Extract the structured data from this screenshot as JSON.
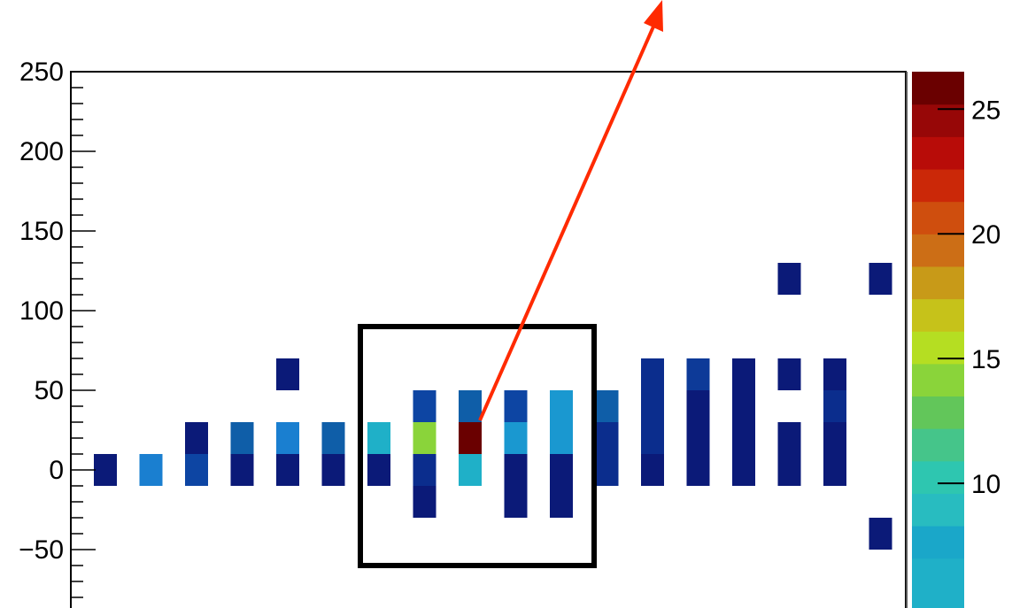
{
  "chart_data": {
    "type": "heatmap",
    "title": "",
    "xlabel": "",
    "ylabel": "",
    "ylim": [
      -85,
      250
    ],
    "y_ticks": [
      {
        "value": 250,
        "label": "250"
      },
      {
        "value": 200,
        "label": "200"
      },
      {
        "value": 150,
        "label": "150"
      },
      {
        "value": 100,
        "label": "100"
      },
      {
        "value": 50,
        "label": "50"
      },
      {
        "value": 0,
        "label": "0"
      },
      {
        "value": -50,
        "label": "−50"
      }
    ],
    "y_minor_step": 10,
    "y_bin_height": 20,
    "x_columns": 18,
    "grid": false,
    "colorbar": {
      "range": [
        5,
        26.5
      ],
      "ticks": [
        {
          "value": 25,
          "label": "25"
        },
        {
          "value": 20,
          "label": "20"
        },
        {
          "value": 15,
          "label": "15"
        },
        {
          "value": 10,
          "label": "10"
        }
      ],
      "levels": [
        {
          "from": 5.0,
          "to": 7.0,
          "color": "#1fb0c8"
        },
        {
          "from": 7.0,
          "to": 8.3,
          "color": "#1aa7c9"
        },
        {
          "from": 8.3,
          "to": 9.6,
          "color": "#28bcc0"
        },
        {
          "from": 9.6,
          "to": 10.9,
          "color": "#2ec6b0"
        },
        {
          "from": 10.9,
          "to": 12.2,
          "color": "#45c58a"
        },
        {
          "from": 12.2,
          "to": 13.5,
          "color": "#62c65a"
        },
        {
          "from": 13.5,
          "to": 14.8,
          "color": "#8ad43a"
        },
        {
          "from": 14.8,
          "to": 16.1,
          "color": "#b5de22"
        },
        {
          "from": 16.1,
          "to": 17.4,
          "color": "#c6c21a"
        },
        {
          "from": 17.4,
          "to": 18.7,
          "color": "#c89a18"
        },
        {
          "from": 18.7,
          "to": 20.0,
          "color": "#cc6e16"
        },
        {
          "from": 20.0,
          "to": 21.3,
          "color": "#cf4e0e"
        },
        {
          "from": 21.3,
          "to": 22.6,
          "color": "#cb2808"
        },
        {
          "from": 22.6,
          "to": 23.9,
          "color": "#b80c08"
        },
        {
          "from": 23.9,
          "to": 25.2,
          "color": "#970707"
        },
        {
          "from": 25.2,
          "to": 26.5,
          "color": "#6a0000"
        }
      ]
    },
    "cells": [
      {
        "col": 1,
        "y": 0,
        "value": 1,
        "color": "#0b1a78"
      },
      {
        "col": 2,
        "y": 0,
        "value": 4,
        "color": "#1a7fd0"
      },
      {
        "col": 3,
        "y": 20,
        "value": 1,
        "color": "#0b1a78"
      },
      {
        "col": 3,
        "y": 0,
        "value": 2,
        "color": "#0d45a3"
      },
      {
        "col": 4,
        "y": 20,
        "value": 3,
        "color": "#0f5ea8"
      },
      {
        "col": 4,
        "y": 0,
        "value": 1,
        "color": "#0b1a78"
      },
      {
        "col": 5,
        "y": 60,
        "value": 1,
        "color": "#0b1a78"
      },
      {
        "col": 5,
        "y": 20,
        "value": 4,
        "color": "#1a7fd0"
      },
      {
        "col": 5,
        "y": 0,
        "value": 1,
        "color": "#0b1a78"
      },
      {
        "col": 6,
        "y": 20,
        "value": 3,
        "color": "#0f5ea8"
      },
      {
        "col": 6,
        "y": 0,
        "value": 1,
        "color": "#0b1a78"
      },
      {
        "col": 7,
        "y": 20,
        "value": 7,
        "color": "#1fb0c8"
      },
      {
        "col": 7,
        "y": 0,
        "value": 1,
        "color": "#0b1a78"
      },
      {
        "col": 8,
        "y": 40,
        "value": 2,
        "color": "#0d45a3"
      },
      {
        "col": 8,
        "y": 20,
        "value": 14,
        "color": "#8ad43a"
      },
      {
        "col": 8,
        "y": 0,
        "value": 1,
        "color": "#0b2d8d"
      },
      {
        "col": 8,
        "y": -20,
        "value": 1,
        "color": "#0b1a78"
      },
      {
        "col": 9,
        "y": 40,
        "value": 3,
        "color": "#0f5ea8"
      },
      {
        "col": 9,
        "y": 20,
        "value": 26,
        "color": "#6a0000"
      },
      {
        "col": 9,
        "y": 0,
        "value": 7,
        "color": "#1fb0c8"
      },
      {
        "col": 10,
        "y": 40,
        "value": 2,
        "color": "#0d45a3"
      },
      {
        "col": 10,
        "y": 20,
        "value": 6,
        "color": "#1a98d0"
      },
      {
        "col": 10,
        "y": 0,
        "value": 1,
        "color": "#0b1a78"
      },
      {
        "col": 10,
        "y": -20,
        "value": 1,
        "color": "#0b1a78"
      },
      {
        "col": 11,
        "y": 40,
        "value": 6,
        "color": "#1a98d0"
      },
      {
        "col": 11,
        "y": 20,
        "value": 6,
        "color": "#1a98d0"
      },
      {
        "col": 11,
        "y": 0,
        "value": 1,
        "color": "#0b1a78"
      },
      {
        "col": 11,
        "y": -20,
        "value": 1,
        "color": "#0b1a78"
      },
      {
        "col": 12,
        "y": 40,
        "value": 3,
        "color": "#0f5ea8"
      },
      {
        "col": 12,
        "y": 20,
        "value": 1,
        "color": "#0b2d8d"
      },
      {
        "col": 12,
        "y": 0,
        "value": 1,
        "color": "#0b2d8d"
      },
      {
        "col": 13,
        "y": 60,
        "value": 1,
        "color": "#0b2d8d"
      },
      {
        "col": 13,
        "y": 40,
        "value": 1,
        "color": "#0b2d8d"
      },
      {
        "col": 13,
        "y": 20,
        "value": 1,
        "color": "#0b2d8d"
      },
      {
        "col": 13,
        "y": 0,
        "value": 1,
        "color": "#0b1a78"
      },
      {
        "col": 14,
        "y": 60,
        "value": 2,
        "color": "#0d3a98"
      },
      {
        "col": 14,
        "y": 40,
        "value": 1,
        "color": "#0b1a78"
      },
      {
        "col": 14,
        "y": 20,
        "value": 1,
        "color": "#0b1a78"
      },
      {
        "col": 14,
        "y": 0,
        "value": 1,
        "color": "#0b1a78"
      },
      {
        "col": 15,
        "y": 60,
        "value": 1,
        "color": "#0b1a78"
      },
      {
        "col": 15,
        "y": 40,
        "value": 1,
        "color": "#0b1a78"
      },
      {
        "col": 15,
        "y": 20,
        "value": 1,
        "color": "#0b1a78"
      },
      {
        "col": 15,
        "y": 0,
        "value": 1,
        "color": "#0b1a78"
      },
      {
        "col": 16,
        "y": 120,
        "value": 1,
        "color": "#0b1a78"
      },
      {
        "col": 16,
        "y": 60,
        "value": 1,
        "color": "#0b1a78"
      },
      {
        "col": 16,
        "y": 20,
        "value": 1,
        "color": "#0b1a78"
      },
      {
        "col": 16,
        "y": 0,
        "value": 1,
        "color": "#0b1a78"
      },
      {
        "col": 17,
        "y": 60,
        "value": 1,
        "color": "#0b1a78"
      },
      {
        "col": 17,
        "y": 40,
        "value": 2,
        "color": "#0b2d8d"
      },
      {
        "col": 17,
        "y": 20,
        "value": 1,
        "color": "#0b1a78"
      },
      {
        "col": 17,
        "y": 0,
        "value": 1,
        "color": "#0b1a78"
      },
      {
        "col": 18,
        "y": 120,
        "value": 1,
        "color": "#0b1a78"
      },
      {
        "col": 18,
        "y": -40,
        "value": 1,
        "color": "#0b1a78"
      }
    ],
    "annotations": {
      "highlight_box": {
        "col_from": 7,
        "col_to": 11,
        "y_from": -60,
        "y_to": 90,
        "color": "#000000"
      },
      "arrow": {
        "from_col": 9,
        "from_y": 30,
        "color": "#ff2a00",
        "direction": "up-right"
      }
    }
  }
}
